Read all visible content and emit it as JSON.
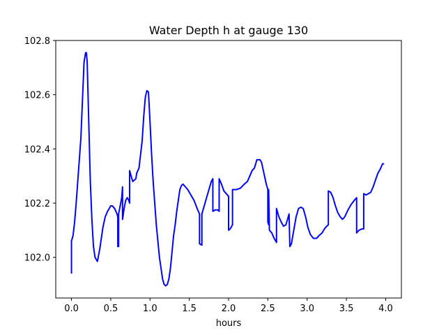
{
  "chart_data": {
    "type": "line",
    "title": "Water Depth h at gauge 130",
    "xlabel": "hours",
    "ylabel": "",
    "xlim": [
      -0.2,
      4.2
    ],
    "ylim": [
      101.85,
      102.8
    ],
    "xticks": [
      0.0,
      0.5,
      1.0,
      1.5,
      2.0,
      2.5,
      3.0,
      3.5,
      4.0
    ],
    "xtick_labels": [
      "0.0",
      "0.5",
      "1.0",
      "1.5",
      "2.0",
      "2.5",
      "3.0",
      "3.5",
      "4.0"
    ],
    "yticks": [
      102.0,
      102.2,
      102.4,
      102.6,
      102.8
    ],
    "ytick_labels": [
      "102.0",
      "102.2",
      "102.4",
      "102.6",
      "102.8"
    ],
    "grid": false,
    "series": [
      {
        "color": "#0000ff",
        "points": [
          [
            0.0,
            101.94
          ],
          [
            0.0,
            102.06
          ],
          [
            0.02,
            102.08
          ],
          [
            0.04,
            102.13
          ],
          [
            0.06,
            102.2
          ],
          [
            0.08,
            102.28
          ],
          [
            0.1,
            102.36
          ],
          [
            0.12,
            102.44
          ],
          [
            0.14,
            102.58
          ],
          [
            0.16,
            102.72
          ],
          [
            0.18,
            102.755
          ],
          [
            0.19,
            102.755
          ],
          [
            0.2,
            102.72
          ],
          [
            0.22,
            102.5
          ],
          [
            0.24,
            102.28
          ],
          [
            0.26,
            102.14
          ],
          [
            0.28,
            102.04
          ],
          [
            0.3,
            102.0
          ],
          [
            0.33,
            101.985
          ],
          [
            0.36,
            102.03
          ],
          [
            0.38,
            102.07
          ],
          [
            0.4,
            102.11
          ],
          [
            0.43,
            102.15
          ],
          [
            0.46,
            102.17
          ],
          [
            0.48,
            102.18
          ],
          [
            0.5,
            102.19
          ],
          [
            0.52,
            102.19
          ],
          [
            0.55,
            102.18
          ],
          [
            0.58,
            102.16
          ],
          [
            0.59,
            102.15
          ],
          [
            0.59,
            102.04
          ],
          [
            0.6,
            102.04
          ],
          [
            0.6,
            102.16
          ],
          [
            0.62,
            102.19
          ],
          [
            0.64,
            102.22
          ],
          [
            0.65,
            102.26
          ],
          [
            0.65,
            102.14
          ],
          [
            0.67,
            102.18
          ],
          [
            0.69,
            102.21
          ],
          [
            0.71,
            102.22
          ],
          [
            0.73,
            102.21
          ],
          [
            0.74,
            102.2
          ],
          [
            0.74,
            102.32
          ],
          [
            0.76,
            102.3
          ],
          [
            0.78,
            102.28
          ],
          [
            0.8,
            102.285
          ],
          [
            0.82,
            102.29
          ],
          [
            0.83,
            102.31
          ],
          [
            0.86,
            102.33
          ],
          [
            0.88,
            102.38
          ],
          [
            0.9,
            102.43
          ],
          [
            0.92,
            102.52
          ],
          [
            0.94,
            102.59
          ],
          [
            0.96,
            102.615
          ],
          [
            0.98,
            102.61
          ],
          [
            1.0,
            102.5
          ],
          [
            1.02,
            102.38
          ],
          [
            1.04,
            102.28
          ],
          [
            1.06,
            102.2
          ],
          [
            1.08,
            102.12
          ],
          [
            1.1,
            102.06
          ],
          [
            1.12,
            102.0
          ],
          [
            1.14,
            101.96
          ],
          [
            1.16,
            101.92
          ],
          [
            1.18,
            101.9
          ],
          [
            1.2,
            101.895
          ],
          [
            1.22,
            101.9
          ],
          [
            1.24,
            101.92
          ],
          [
            1.26,
            101.96
          ],
          [
            1.28,
            102.02
          ],
          [
            1.3,
            102.08
          ],
          [
            1.32,
            102.12
          ],
          [
            1.34,
            102.17
          ],
          [
            1.36,
            102.21
          ],
          [
            1.38,
            102.25
          ],
          [
            1.4,
            102.265
          ],
          [
            1.42,
            102.27
          ],
          [
            1.45,
            102.26
          ],
          [
            1.48,
            102.25
          ],
          [
            1.52,
            102.23
          ],
          [
            1.56,
            102.21
          ],
          [
            1.6,
            102.18
          ],
          [
            1.63,
            102.16
          ],
          [
            1.63,
            102.05
          ],
          [
            1.66,
            102.045
          ],
          [
            1.66,
            102.16
          ],
          [
            1.69,
            102.19
          ],
          [
            1.72,
            102.22
          ],
          [
            1.75,
            102.25
          ],
          [
            1.78,
            102.28
          ],
          [
            1.8,
            102.29
          ],
          [
            1.8,
            102.17
          ],
          [
            1.83,
            102.175
          ],
          [
            1.86,
            102.175
          ],
          [
            1.88,
            102.17
          ],
          [
            1.88,
            102.29
          ],
          [
            1.91,
            102.27
          ],
          [
            1.94,
            102.245
          ],
          [
            1.97,
            102.235
          ],
          [
            2.0,
            102.225
          ],
          [
            2.0,
            102.1
          ],
          [
            2.02,
            102.105
          ],
          [
            2.05,
            102.12
          ],
          [
            2.05,
            102.25
          ],
          [
            2.1,
            102.25
          ],
          [
            2.15,
            102.255
          ],
          [
            2.2,
            102.27
          ],
          [
            2.24,
            102.28
          ],
          [
            2.27,
            102.3
          ],
          [
            2.3,
            102.32
          ],
          [
            2.33,
            102.33
          ],
          [
            2.36,
            102.36
          ],
          [
            2.4,
            102.36
          ],
          [
            2.42,
            102.35
          ],
          [
            2.45,
            102.31
          ],
          [
            2.48,
            102.27
          ],
          [
            2.5,
            102.25
          ],
          [
            2.5,
            102.13
          ],
          [
            2.51,
            102.12
          ],
          [
            2.51,
            102.25
          ],
          [
            2.52,
            102.1
          ],
          [
            2.55,
            102.09
          ],
          [
            2.58,
            102.07
          ],
          [
            2.6,
            102.06
          ],
          [
            2.61,
            102.055
          ],
          [
            2.61,
            102.18
          ],
          [
            2.64,
            102.15
          ],
          [
            2.67,
            102.13
          ],
          [
            2.7,
            102.115
          ],
          [
            2.73,
            102.12
          ],
          [
            2.75,
            102.14
          ],
          [
            2.77,
            102.16
          ],
          [
            2.78,
            102.04
          ],
          [
            2.8,
            102.05
          ],
          [
            2.83,
            102.1
          ],
          [
            2.86,
            102.15
          ],
          [
            2.89,
            102.18
          ],
          [
            2.92,
            102.185
          ],
          [
            2.95,
            102.18
          ],
          [
            2.98,
            102.15
          ],
          [
            3.01,
            102.11
          ],
          [
            3.04,
            102.085
          ],
          [
            3.08,
            102.07
          ],
          [
            3.12,
            102.07
          ],
          [
            3.15,
            102.08
          ],
          [
            3.19,
            102.09
          ],
          [
            3.22,
            102.105
          ],
          [
            3.25,
            102.115
          ],
          [
            3.27,
            102.12
          ],
          [
            3.27,
            102.245
          ],
          [
            3.3,
            102.24
          ],
          [
            3.33,
            102.22
          ],
          [
            3.36,
            102.19
          ],
          [
            3.39,
            102.165
          ],
          [
            3.42,
            102.15
          ],
          [
            3.45,
            102.14
          ],
          [
            3.48,
            102.15
          ],
          [
            3.52,
            102.175
          ],
          [
            3.56,
            102.195
          ],
          [
            3.6,
            102.21
          ],
          [
            3.63,
            102.22
          ],
          [
            3.63,
            102.09
          ],
          [
            3.66,
            102.1
          ],
          [
            3.7,
            102.105
          ],
          [
            3.72,
            102.105
          ],
          [
            3.72,
            102.235
          ],
          [
            3.75,
            102.23
          ],
          [
            3.78,
            102.235
          ],
          [
            3.81,
            102.24
          ],
          [
            3.84,
            102.26
          ],
          [
            3.87,
            102.285
          ],
          [
            3.9,
            102.31
          ],
          [
            3.93,
            102.325
          ],
          [
            3.96,
            102.345
          ],
          [
            3.98,
            102.345
          ]
        ]
      }
    ]
  }
}
